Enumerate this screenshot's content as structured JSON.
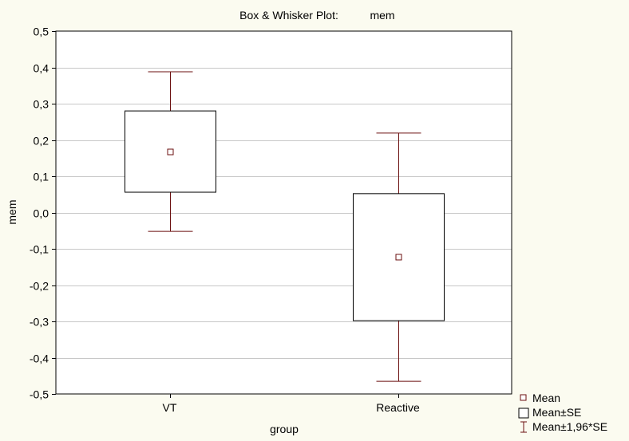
{
  "chart_data": {
    "type": "box",
    "title_prefix": "Box & Whisker Plot:",
    "title_variable": "mem",
    "xlabel": "group",
    "ylabel": "mem",
    "categories": [
      "VT",
      "Reactive"
    ],
    "ylim": [
      -0.5,
      0.5
    ],
    "yticks": [
      0.5,
      0.4,
      0.3,
      0.2,
      0.1,
      0.0,
      -0.1,
      -0.2,
      -0.3,
      -0.4,
      -0.5
    ],
    "ytick_labels": [
      "0,5",
      "0,4",
      "0,3",
      "0,2",
      "0,1",
      "0,0",
      "-0,1",
      "-0,2",
      "-0,3",
      "-0,4",
      "-0,5"
    ],
    "grid": true,
    "legend_position": "bottom-right",
    "series": [
      {
        "category": "VT",
        "mean": 0.167,
        "se_low": 0.056,
        "se_high": 0.28,
        "ci_low": -0.052,
        "ci_high": 0.388
      },
      {
        "category": "Reactive",
        "mean": -0.123,
        "se_low": -0.298,
        "se_high": 0.052,
        "ci_low": -0.465,
        "ci_high": 0.219
      }
    ],
    "legend": [
      {
        "symbol": "mean-marker",
        "label": "Mean"
      },
      {
        "symbol": "box",
        "label": "Mean±SE"
      },
      {
        "symbol": "whisker",
        "label": "Mean±1,96*SE"
      }
    ],
    "colors": {
      "background": "#fbfbf0",
      "plot_background": "#ffffff",
      "mark": "#6b0f0f",
      "grid": "#c8c8c8",
      "axis": "#000000"
    }
  }
}
